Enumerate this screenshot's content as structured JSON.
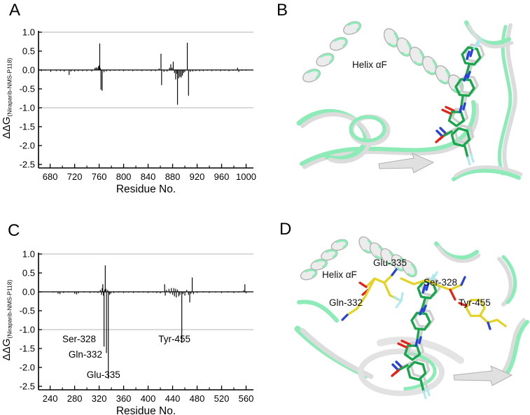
{
  "panel_letters": {
    "a": "A",
    "b": "B",
    "c": "C",
    "d": "D"
  },
  "colors": {
    "ribbon_green": "#8debb7",
    "ribbon_gray": "#dcdcdc",
    "ribbon_edge": "#b2b2b2",
    "carbon_green": "#1aa64c",
    "carbon_white": "#cfcfcf",
    "nitrogen_blue": "#2742d6",
    "oxygen_red": "#e02418",
    "fluorine_cyan": "#aee9ee",
    "residue_yellow": "#e2d324",
    "grid_gray": "#b3b3b3",
    "axis_black": "#000000"
  },
  "molecules": {
    "b": {
      "helix_label": "Helix αF"
    },
    "d": {
      "helix_label": "Helix αF",
      "glu_label": "Glu-335",
      "ser_label": "Ser-328",
      "gln_label": "Gln-332",
      "tyr_label": "Tyr-455"
    }
  },
  "chart_data": [
    {
      "id": "A",
      "type": "bar",
      "title": "",
      "xlabel": "Residue No.",
      "ylabel_main": "ΔΔG",
      "ylabel_sub": "(Niraparib-NMS-P118)",
      "xlim": [
        661,
        1012
      ],
      "ylim": [
        -2.5,
        1.0
      ],
      "xticks": [
        680,
        720,
        760,
        800,
        840,
        880,
        920,
        960,
        1000
      ],
      "xtick_minor_step": 20,
      "yticks": [
        1.0,
        0.5,
        0.0,
        -0.5,
        -1.0,
        -1.5,
        -2.0,
        -2.5
      ],
      "gridlines": [
        1.0,
        -1.0
      ],
      "grid_on": true,
      "legend": null,
      "points": [
        [
          666,
          -0.03
        ],
        [
          672,
          -0.02
        ],
        [
          681,
          -0.05
        ],
        [
          690,
          -0.03
        ],
        [
          697,
          -0.03
        ],
        [
          703,
          -0.04
        ],
        [
          711,
          -0.13
        ],
        [
          714,
          -0.04
        ],
        [
          720,
          -0.04
        ],
        [
          726,
          -0.03
        ],
        [
          733,
          -0.03
        ],
        [
          740,
          -0.03
        ],
        [
          748,
          -0.04
        ],
        [
          753,
          0.05
        ],
        [
          755,
          0.07
        ],
        [
          757,
          0.06
        ],
        [
          759,
          0.1
        ],
        [
          760,
          0.12
        ],
        [
          761,
          0.7
        ],
        [
          762,
          0.05
        ],
        [
          763,
          -0.52
        ],
        [
          765,
          -0.55
        ],
        [
          768,
          -0.06
        ],
        [
          772,
          -0.04
        ],
        [
          778,
          -0.03
        ],
        [
          785,
          -0.02
        ],
        [
          793,
          -0.02
        ],
        [
          800,
          -0.03
        ],
        [
          808,
          -0.02
        ],
        [
          815,
          -0.03
        ],
        [
          822,
          -0.02
        ],
        [
          830,
          -0.03
        ],
        [
          838,
          -0.02
        ],
        [
          845,
          -0.03
        ],
        [
          852,
          -0.03
        ],
        [
          858,
          0.04
        ],
        [
          861,
          0.43
        ],
        [
          862,
          -0.4
        ],
        [
          866,
          -0.05
        ],
        [
          871,
          -0.04
        ],
        [
          875,
          0.06
        ],
        [
          877,
          0.15
        ],
        [
          879,
          0.06
        ],
        [
          881,
          0.22
        ],
        [
          883,
          -0.08
        ],
        [
          885,
          -0.25
        ],
        [
          887,
          -0.1
        ],
        [
          888,
          -0.92
        ],
        [
          890,
          -0.22
        ],
        [
          892,
          -0.18
        ],
        [
          894,
          -0.2
        ],
        [
          896,
          -0.15
        ],
        [
          898,
          -0.08
        ],
        [
          900,
          -0.05
        ],
        [
          904,
          0.72
        ],
        [
          906,
          -0.68
        ],
        [
          909,
          -0.05
        ],
        [
          913,
          -0.04
        ],
        [
          918,
          -0.03
        ],
        [
          924,
          -0.03
        ],
        [
          930,
          -0.03
        ],
        [
          937,
          -0.02
        ],
        [
          944,
          -0.03
        ],
        [
          951,
          -0.02
        ],
        [
          958,
          -0.03
        ],
        [
          965,
          -0.02
        ],
        [
          972,
          -0.03
        ],
        [
          979,
          -0.02
        ],
        [
          986,
          0.06
        ],
        [
          988,
          -0.05
        ],
        [
          993,
          -0.02
        ],
        [
          1000,
          -0.02
        ]
      ],
      "annotations": []
    },
    {
      "id": "C",
      "type": "bar",
      "title": "",
      "xlabel": "Residue No.",
      "ylabel_main": "ΔΔG",
      "ylabel_sub": "(Niraparib-NMS-P118)",
      "xlim": [
        221,
        572
      ],
      "ylim": [
        -2.5,
        1.0
      ],
      "xticks": [
        240,
        280,
        320,
        360,
        400,
        440,
        480,
        520,
        560
      ],
      "xtick_minor_step": 20,
      "yticks": [
        1.0,
        0.5,
        0.0,
        -0.5,
        -1.0,
        -1.5,
        -2.0,
        -2.5
      ],
      "gridlines": [
        1.0,
        -1.0
      ],
      "grid_on": true,
      "legend": null,
      "points": [
        [
          245,
          -0.02
        ],
        [
          253,
          -0.05
        ],
        [
          256,
          -0.06
        ],
        [
          262,
          -0.03
        ],
        [
          270,
          -0.02
        ],
        [
          280,
          -0.05
        ],
        [
          283,
          -0.07
        ],
        [
          286,
          -0.04
        ],
        [
          295,
          -0.02
        ],
        [
          305,
          -0.03
        ],
        [
          312,
          -0.02
        ],
        [
          318,
          -0.03
        ],
        [
          322,
          0.05
        ],
        [
          324,
          -0.08
        ],
        [
          325,
          0.1
        ],
        [
          326,
          0.2
        ],
        [
          327,
          -0.1
        ],
        [
          328,
          -1.45
        ],
        [
          329,
          0.06
        ],
        [
          330,
          0.7
        ],
        [
          331,
          0.08
        ],
        [
          332,
          -1.62
        ],
        [
          334,
          0.05
        ],
        [
          335,
          -2.3
        ],
        [
          337,
          -0.08
        ],
        [
          339,
          -0.05
        ],
        [
          344,
          -0.03
        ],
        [
          352,
          -0.02
        ],
        [
          360,
          -0.03
        ],
        [
          368,
          -0.02
        ],
        [
          376,
          -0.03
        ],
        [
          384,
          -0.02
        ],
        [
          392,
          -0.02
        ],
        [
          400,
          -0.03
        ],
        [
          408,
          -0.02
        ],
        [
          414,
          -0.03
        ],
        [
          420,
          -0.04
        ],
        [
          427,
          0.2
        ],
        [
          428,
          -0.1
        ],
        [
          430,
          0.05
        ],
        [
          434,
          0.08
        ],
        [
          436,
          -0.05
        ],
        [
          438,
          0.1
        ],
        [
          440,
          -0.08
        ],
        [
          442,
          0.1
        ],
        [
          443,
          -0.12
        ],
        [
          445,
          0.08
        ],
        [
          446,
          -0.15
        ],
        [
          448,
          0.06
        ],
        [
          450,
          -0.12
        ],
        [
          452,
          -0.08
        ],
        [
          455,
          -1.35
        ],
        [
          457,
          -0.06
        ],
        [
          460,
          -0.1
        ],
        [
          463,
          0.05
        ],
        [
          466,
          -0.08
        ],
        [
          468,
          -0.28
        ],
        [
          470,
          -0.05
        ],
        [
          472,
          0.38
        ],
        [
          474,
          -0.06
        ],
        [
          480,
          -0.03
        ],
        [
          490,
          -0.02
        ],
        [
          500,
          -0.03
        ],
        [
          510,
          -0.02
        ],
        [
          520,
          -0.03
        ],
        [
          530,
          -0.02
        ],
        [
          540,
          -0.03
        ],
        [
          548,
          -0.02
        ],
        [
          556,
          0.04
        ],
        [
          558,
          0.2
        ],
        [
          560,
          -0.04
        ]
      ],
      "annotations": [
        {
          "label": "Ser-328",
          "res": 314.8,
          "value": -1.33,
          "anchor": "end"
        },
        {
          "label": "Gln-332",
          "res": 325.0,
          "value": -1.74,
          "anchor": "end"
        },
        {
          "label": "Glu-335",
          "res": 327.0,
          "value": -2.28,
          "anchor": "middle"
        },
        {
          "label": "Tyr-455",
          "res": 443.0,
          "value": -1.33,
          "anchor": "middle"
        }
      ]
    }
  ]
}
